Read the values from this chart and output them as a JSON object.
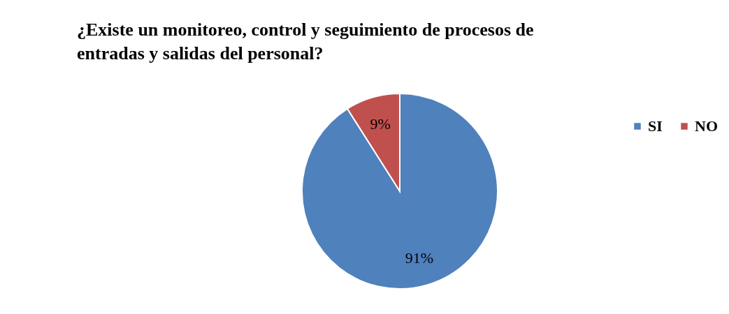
{
  "chart_data": {
    "type": "pie",
    "title": "¿Existe un monitoreo, control y seguimiento de procesos de entradas y salidas del personal?",
    "categories": [
      "SI",
      "NO"
    ],
    "values": [
      91,
      9
    ],
    "colors": [
      "#4f81bd",
      "#c0504d"
    ],
    "value_labels": [
      "91%",
      "9%"
    ],
    "legend": "right"
  }
}
